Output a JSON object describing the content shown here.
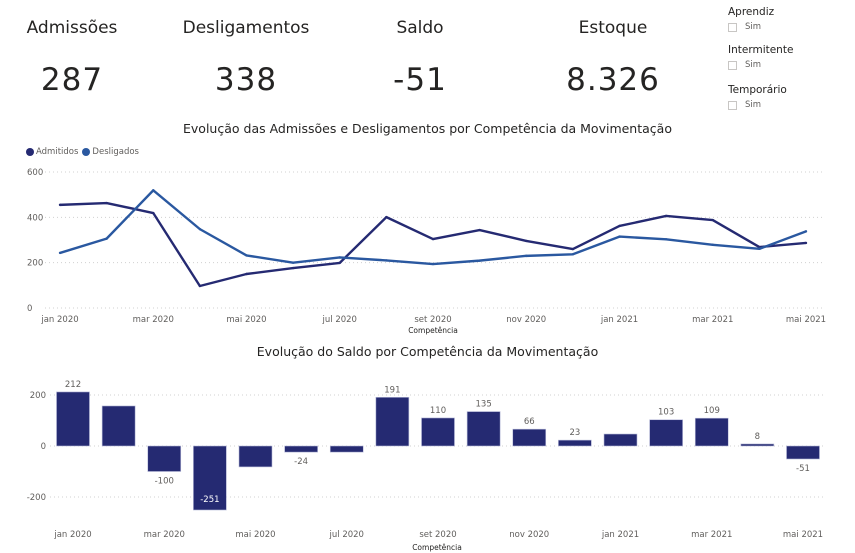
{
  "kpis": [
    {
      "label": "Admissões",
      "value": "287"
    },
    {
      "label": "Desligamentos",
      "value": "338"
    },
    {
      "label": "Saldo",
      "value": "-51"
    },
    {
      "label": "Estoque",
      "value": "8.326"
    }
  ],
  "slicers": [
    {
      "title": "Aprendiz",
      "option": "Sim",
      "checked": false
    },
    {
      "title": "Intermitente",
      "option": "Sim",
      "checked": false
    },
    {
      "title": "Temporário",
      "option": "Sim",
      "checked": false
    }
  ],
  "colors": {
    "admitidos": "#252a72",
    "desligados": "#2a58a0",
    "saldo_bar": "#252a72",
    "gridline": "#d0d0d0"
  },
  "chart_data": [
    {
      "type": "line",
      "title": "Evolução das Admissões e Desligamentos por Competência da Movimentação",
      "xlabel": "Competência",
      "ylabel": "",
      "ylim": [
        0,
        600
      ],
      "yticks": [
        0,
        200,
        400,
        600
      ],
      "grid": true,
      "legend_position": "top-left",
      "x": [
        "jan 2020",
        "fev 2020",
        "mar 2020",
        "abr 2020",
        "mai 2020",
        "jun 2020",
        "jul 2020",
        "ago 2020",
        "set 2020",
        "out 2020",
        "nov 2020",
        "dez 2020",
        "jan 2021",
        "fev 2021",
        "mar 2021",
        "abr 2021",
        "mai 2021"
      ],
      "xtick_labels": [
        "jan 2020",
        "mar 2020",
        "mai 2020",
        "jul 2020",
        "set 2020",
        "nov 2020",
        "jan 2021",
        "mar 2021",
        "mai 2021"
      ],
      "series": [
        {
          "name": "Admitidos",
          "values": [
            455,
            463,
            419,
            97,
            150,
            176,
            199,
            401,
            304,
            344,
            296,
            260,
            362,
            406,
            388,
            269,
            287
          ]
        },
        {
          "name": "Desligados",
          "values": [
            243,
            306,
            519,
            348,
            232,
            200,
            223,
            210,
            194,
            209,
            230,
            237,
            315,
            303,
            279,
            261,
            338
          ]
        }
      ]
    },
    {
      "type": "bar",
      "title": "Evolução do Saldo por Competência da Movimentação",
      "xlabel": "Competência",
      "ylabel": "",
      "ylim": [
        -300,
        260
      ],
      "yticks": [
        -200,
        0,
        200
      ],
      "grid": true,
      "categories": [
        "jan 2020",
        "fev 2020",
        "mar 2020",
        "abr 2020",
        "mai 2020",
        "jun 2020",
        "jul 2020",
        "ago 2020",
        "set 2020",
        "out 2020",
        "nov 2020",
        "dez 2020",
        "jan 2021",
        "fev 2021",
        "mar 2021",
        "abr 2021",
        "mai 2021"
      ],
      "xtick_labels": [
        "jan 2020",
        "mar 2020",
        "mai 2020",
        "jul 2020",
        "set 2020",
        "nov 2020",
        "jan 2021",
        "mar 2021",
        "mai 2021"
      ],
      "values": [
        212,
        157,
        -100,
        -251,
        -82,
        -24,
        -24,
        191,
        110,
        135,
        66,
        23,
        47,
        103,
        109,
        8,
        -51
      ],
      "data_labels": [
        "212",
        "",
        "-100",
        "-251",
        "",
        "-24",
        "",
        "191",
        "110",
        "135",
        "66",
        "23",
        "",
        "103",
        "109",
        "8",
        "-51"
      ]
    }
  ]
}
